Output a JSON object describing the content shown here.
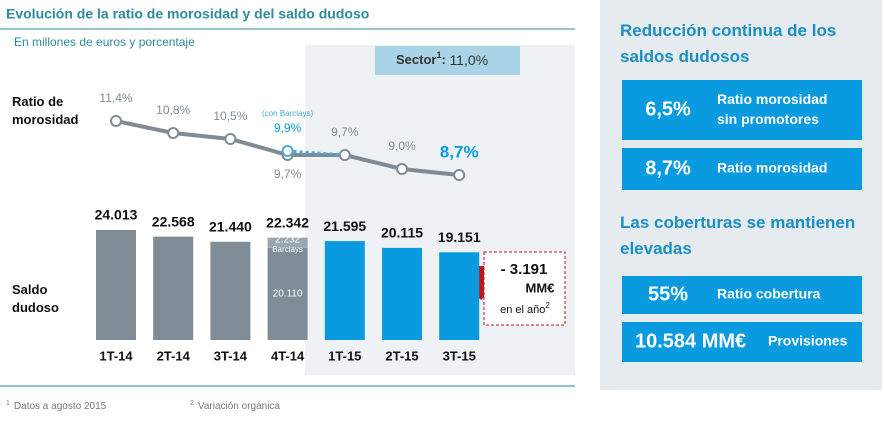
{
  "header": {
    "title": "Evolución de la ratio de morosidad y del saldo dudoso",
    "subtitle": "En millones de euros y porcentaje"
  },
  "chart_data": [
    {
      "type": "line",
      "y_label": "Ratio de morosidad",
      "series": [
        {
          "color": "#7f8c95",
          "values": [
            11.4,
            10.8,
            10.5,
            9.7,
            9.7,
            9.0,
            8.7
          ],
          "value_labels": [
            "11,4%",
            "10,8%",
            "10,5%",
            "9,7%",
            "9,7%",
            "9,0%",
            "8,7%"
          ]
        },
        {
          "name": "(con Barclays)",
          "color": "#4aa8d8",
          "dashed": true,
          "values": [
            null,
            null,
            null,
            9.9,
            9.7,
            null,
            null
          ],
          "value_labels": [
            null,
            null,
            null,
            "9,9%",
            null,
            null,
            null
          ]
        }
      ]
    },
    {
      "type": "bar",
      "y_label": "Saldo dudoso",
      "categories": [
        "1T-14",
        "2T-14",
        "3T-14",
        "4T-14",
        "1T-15",
        "2T-15",
        "3T-15"
      ],
      "series": [
        {
          "colors": [
            "#7f8c95",
            "#7f8c95",
            "#7f8c95",
            "#7f8c95",
            "#0a9ae0",
            "#0a9ae0",
            "#0a9ae0"
          ],
          "values": [
            24013,
            22568,
            21440,
            20110,
            21595,
            20115,
            19151
          ],
          "value_labels": [
            null,
            null,
            null,
            "20.110",
            null,
            null,
            null
          ]
        },
        {
          "name": "Barclays",
          "colors": [
            null,
            null,
            null,
            "#9aa5ad",
            null,
            null,
            null
          ],
          "values": [
            null,
            null,
            null,
            2232,
            null,
            null,
            null
          ],
          "value_labels": [
            null,
            null,
            null,
            "2.232",
            null,
            null,
            null
          ]
        }
      ],
      "totals": [
        24013,
        22568,
        21440,
        22342,
        21595,
        20115,
        19151
      ],
      "total_labels": [
        "24.013",
        "22.568",
        "21.440",
        "22.342",
        "21.595",
        "20.115",
        "19.151"
      ]
    }
  ],
  "sector": {
    "label": "Sector",
    "note": "1",
    "value": "11,0%"
  },
  "change": {
    "value": "- 3.191",
    "unit": "MM€",
    "period": "en el año",
    "note": "2"
  },
  "footnotes": [
    {
      "mark": "1",
      "text": "Datos a agosto 2015"
    },
    {
      "mark": "2",
      "text": "Variación orgánica"
    }
  ],
  "panel": {
    "sections": [
      {
        "title": "Reducción continua de los saldos dudosos",
        "items": [
          {
            "value": "6,5%",
            "label": "Ratio morosidad sin promotores"
          },
          {
            "value": "8,7%",
            "label": "Ratio morosidad"
          }
        ]
      },
      {
        "title": "Las coberturas se mantienen elevadas",
        "items": [
          {
            "value": "55%",
            "label": "Ratio cobertura"
          },
          {
            "value": "10.584 MM€",
            "label": "Provisiones"
          }
        ]
      }
    ]
  }
}
